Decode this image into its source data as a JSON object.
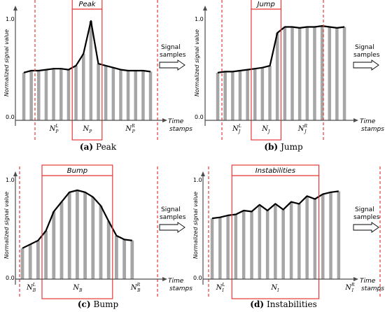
{
  "chart_data": [
    {
      "type": "bar",
      "window_label": "Peak",
      "ylabel": "Normalized signal value",
      "xlabel_line1": "Time",
      "xlabel_line2": "stamps",
      "side_label_line1": "Signal",
      "side_label_line2": "samples",
      "y_ticks": [
        "0.0",
        "1.0"
      ],
      "ylim": [
        0,
        1.1
      ],
      "region_labels": [
        {
          "base": "N",
          "sub": "P",
          "sup": "L"
        },
        {
          "base": "N",
          "sub": "P",
          "sup": ""
        },
        {
          "base": "N",
          "sub": "P",
          "sup": "R"
        }
      ],
      "values": [
        0.48,
        0.5,
        0.5,
        0.51,
        0.52,
        0.52,
        0.51,
        0.55,
        0.67,
        1.0,
        0.57,
        0.55,
        0.53,
        0.51,
        0.5,
        0.5,
        0.5,
        0.49
      ],
      "window_start_index": 7,
      "window_end_index": 11,
      "caption_letter": "(a)",
      "caption_text": "Peak"
    },
    {
      "type": "bar",
      "window_label": "Jump",
      "ylabel": "Normalized signal value",
      "xlabel_line1": "Time",
      "xlabel_line2": "stamps",
      "side_label_line1": "Signal",
      "side_label_line2": "samples",
      "y_ticks": [
        "0.0",
        "1.0"
      ],
      "ylim": [
        0,
        1.1
      ],
      "region_labels": [
        {
          "base": "N",
          "sub": "J",
          "sup": "L"
        },
        {
          "base": "N",
          "sub": "J",
          "sup": ""
        },
        {
          "base": "N",
          "sub": "J",
          "sup": "R"
        }
      ],
      "values": [
        0.48,
        0.49,
        0.49,
        0.5,
        0.51,
        0.52,
        0.53,
        0.55,
        0.88,
        0.94,
        0.94,
        0.93,
        0.94,
        0.94,
        0.95,
        0.94,
        0.93,
        0.94
      ],
      "window_start_index": 5,
      "window_end_index": 9,
      "caption_letter": "(b)",
      "caption_text": "Jump"
    },
    {
      "type": "bar",
      "window_label": "Bump",
      "ylabel": "Normalized signal value",
      "xlabel_line1": "Time",
      "xlabel_line2": "stamps",
      "side_label_line1": "Signal",
      "side_label_line2": "samples",
      "y_ticks": [
        "0.0",
        "1.0"
      ],
      "ylim": [
        0,
        1.1
      ],
      "region_labels": [
        {
          "base": "N",
          "sub": "B",
          "sup": "L"
        },
        {
          "base": "N",
          "sub": "B",
          "sup": ""
        },
        {
          "base": "N",
          "sub": "B",
          "sup": "R"
        }
      ],
      "values": [
        0.32,
        0.36,
        0.4,
        0.5,
        0.7,
        0.8,
        0.9,
        0.92,
        0.9,
        0.85,
        0.76,
        0.6,
        0.45,
        0.41,
        0.4
      ],
      "window_start_index": 3,
      "window_end_index": 12,
      "caption_letter": "(c)",
      "caption_text": "Bump"
    },
    {
      "type": "bar",
      "window_label": "Instabilities",
      "ylabel": "Normalized signal value",
      "xlabel_line1": "Time",
      "xlabel_line2": "stamps",
      "side_label_line1": "Signal",
      "side_label_line2": "samples",
      "y_ticks": [
        "0.0",
        "1.0"
      ],
      "ylim": [
        0,
        1.1
      ],
      "region_labels": [
        {
          "base": "N",
          "sub": "I",
          "sup": "L"
        },
        {
          "base": "N",
          "sub": "I",
          "sup": ""
        },
        {
          "base": "N",
          "sub": "I",
          "sup": "R"
        }
      ],
      "values": [
        0.63,
        0.64,
        0.66,
        0.67,
        0.71,
        0.7,
        0.77,
        0.71,
        0.78,
        0.72,
        0.8,
        0.78,
        0.86,
        0.83,
        0.88,
        0.9,
        0.91
      ],
      "window_start_index": 3,
      "window_end_index": 14,
      "caption_letter": "(d)",
      "caption_text": "Instabilities"
    }
  ],
  "colors": {
    "bar": "#a6a6a6",
    "curve": "#000000",
    "window": "#e53935",
    "boundary": "#e53935",
    "axis": "#4d4d4d"
  }
}
